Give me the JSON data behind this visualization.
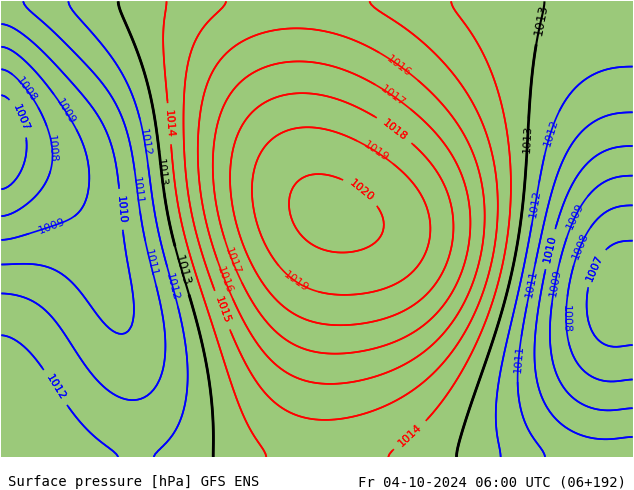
{
  "title_left": "Surface pressure [hPa] GFS ENS",
  "title_right": "Fr 04-10-2024 06:00 UTC (06+192)",
  "title_fontsize": 10,
  "bg_color": "#d0d0d0",
  "land_color_low": "#8fbc6f",
  "land_color_high": "#a0c878",
  "ocean_color": "#c8c8c8",
  "bottom_bar_color": "#ffffff",
  "contour_interval": 1,
  "red_contours": [
    1014,
    1015,
    1016,
    1017,
    1018,
    1019,
    1020
  ],
  "blue_contours": [
    1007,
    1008,
    1009,
    1010,
    1011,
    1012
  ],
  "black_contours": [
    1013
  ],
  "label_fontsize": 8
}
